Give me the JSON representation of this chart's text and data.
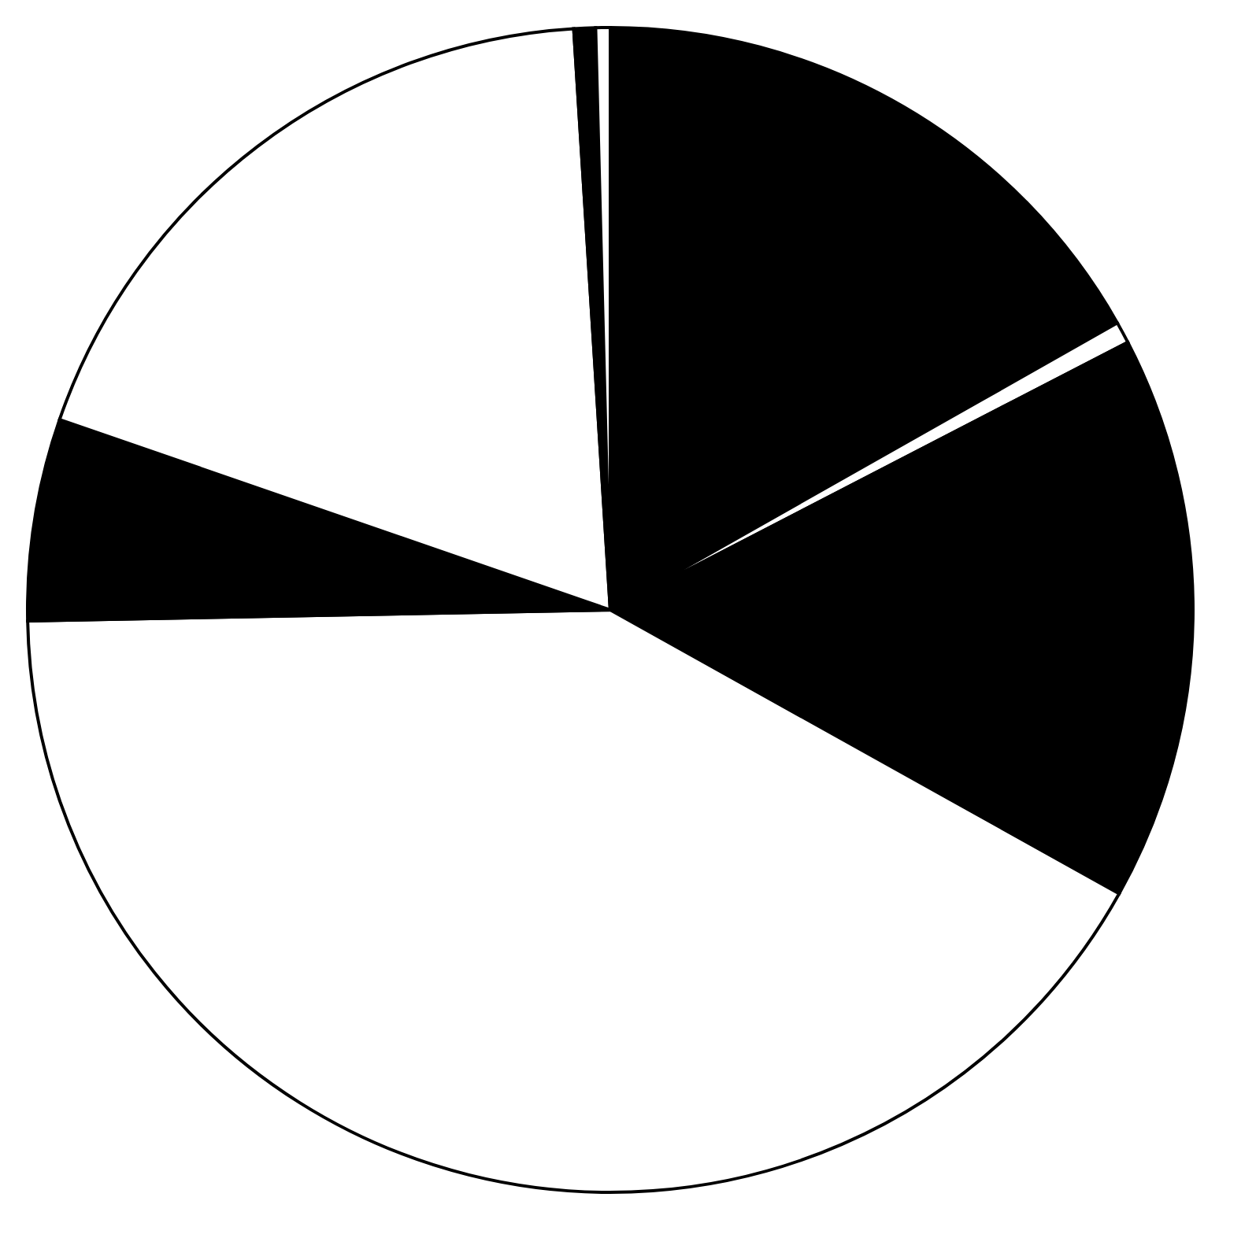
{
  "chart_data": {
    "type": "pie",
    "categories": [
      null,
      null,
      null,
      null,
      null,
      null,
      null,
      null
    ],
    "values": [
      16.8,
      0.6,
      15.7,
      41.6,
      5.6,
      18.7,
      0.6,
      0.4
    ],
    "colors": [
      "#000000",
      "#ffffff",
      "#000000",
      "#ffffff",
      "#000000",
      "#ffffff",
      "#000000",
      "#ffffff"
    ],
    "legend": false
  }
}
